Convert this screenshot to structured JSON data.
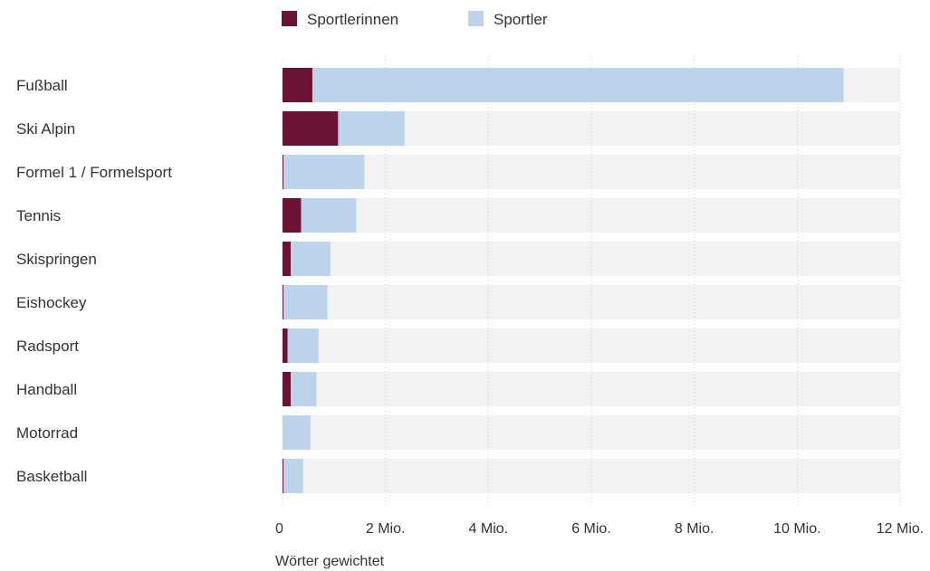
{
  "chart_data": {
    "type": "bar",
    "orientation": "horizontal",
    "stacked": true,
    "categories": [
      "Fußball",
      "Ski Alpin",
      "Formel 1 / Formelsport",
      "Tennis",
      "Skispringen",
      "Eishockey",
      "Radsport",
      "Handball",
      "Motorrad",
      "Basketball"
    ],
    "series": [
      {
        "name": "Sportlerinnen",
        "color": "#6b1436",
        "values": [
          580000,
          1080000,
          20000,
          360000,
          160000,
          20000,
          100000,
          160000,
          0,
          20000
        ]
      },
      {
        "name": "Sportler",
        "color": "#bcd3ea",
        "values": [
          10320000,
          1290000,
          1570000,
          1070000,
          770000,
          850000,
          600000,
          500000,
          540000,
          380000
        ]
      }
    ],
    "xlim": [
      0,
      12000000
    ],
    "xticks": [
      0,
      2000000,
      4000000,
      6000000,
      8000000,
      10000000,
      12000000
    ],
    "xtick_labels": [
      "0",
      "2 Mio.",
      "4 Mio.",
      "6 Mio.",
      "8 Mio.",
      "10 Mio.",
      "12 Mio."
    ],
    "xlabel": "Wörter gewichtet",
    "background_bar_color": "#f2f2f2",
    "grid": true,
    "legend_position": "top"
  }
}
